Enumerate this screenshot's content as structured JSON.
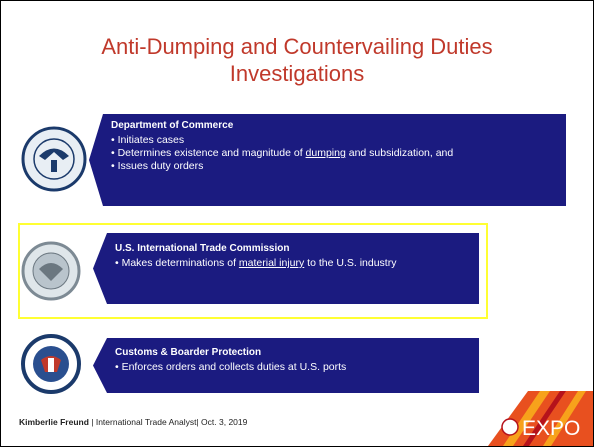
{
  "title": "Anti-Dumping and Countervailing Duties Investigations",
  "panels": [
    {
      "heading": "Department of Commerce",
      "bullets": [
        {
          "text": "Initiates cases"
        },
        {
          "text": "Determines existence and magnitude of ",
          "link": "dumping",
          "after": " and subsidization, and"
        },
        {
          "text": "Issues duty orders"
        }
      ]
    },
    {
      "heading": "U.S. International Trade Commission",
      "bullets": [
        {
          "text": "Makes determinations of ",
          "link": "material injury",
          "after": " to the U.S. industry"
        }
      ]
    },
    {
      "heading": "Customs & Boarder Protection",
      "bullets": [
        {
          "text": "Enforces orders and collects duties at U.S. ports"
        }
      ]
    }
  ],
  "footer": {
    "name": "Kimberlie Freund",
    "rest": " | International Trade Analyst| Oct. 3, 2019"
  },
  "logo": "EXPO"
}
